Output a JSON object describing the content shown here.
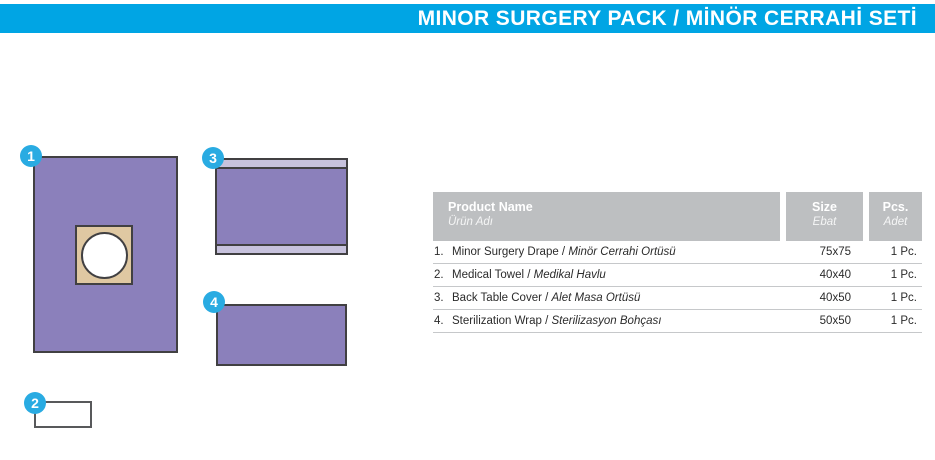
{
  "title_bar": {
    "title": "MINOR SURGERY PACK / MİNÖR CERRAHİ SETİ"
  },
  "colors": {
    "bar": "#00A5E4",
    "accent": "#29ABE2",
    "drape": "#8B80BB",
    "fold": "#C7C2DD",
    "tan": "#DFC8A2",
    "outline": "#414042",
    "towel_outline": "#58595B",
    "header_gray": "#BDBFC1",
    "row_line": "#C6C8CA",
    "text": "#2B2B2B"
  },
  "diagram": {
    "items": [
      {
        "badge": "1"
      },
      {
        "badge": "2"
      },
      {
        "badge": "3"
      },
      {
        "badge": "4"
      }
    ]
  },
  "table": {
    "separator": " / ",
    "header": {
      "product_en": "Product Name",
      "product_tr": "Ürün Adı",
      "size_en": "Size",
      "size_tr": "Ebat",
      "pcs_en": "Pcs.",
      "pcs_tr": "Adet"
    },
    "rows": [
      {
        "no": "1.",
        "name_en": "Minor Surgery Drape",
        "name_tr": "Minör Cerrahi Örtüsü",
        "size": "75x75",
        "pcs": "1 Pc."
      },
      {
        "no": "2.",
        "name_en": "Medical Towel",
        "name_tr": "Medikal Havlu",
        "size": "40x40",
        "pcs": "1 Pc."
      },
      {
        "no": "3.",
        "name_en": "Back Table Cover",
        "name_tr": "Alet Masa Örtüsü",
        "size": "40x50",
        "pcs": "1 Pc."
      },
      {
        "no": "4.",
        "name_en": "Sterilization Wrap",
        "name_tr": "Sterilizasyon Bohçası",
        "size": "50x50",
        "pcs": "1 Pc."
      }
    ]
  }
}
